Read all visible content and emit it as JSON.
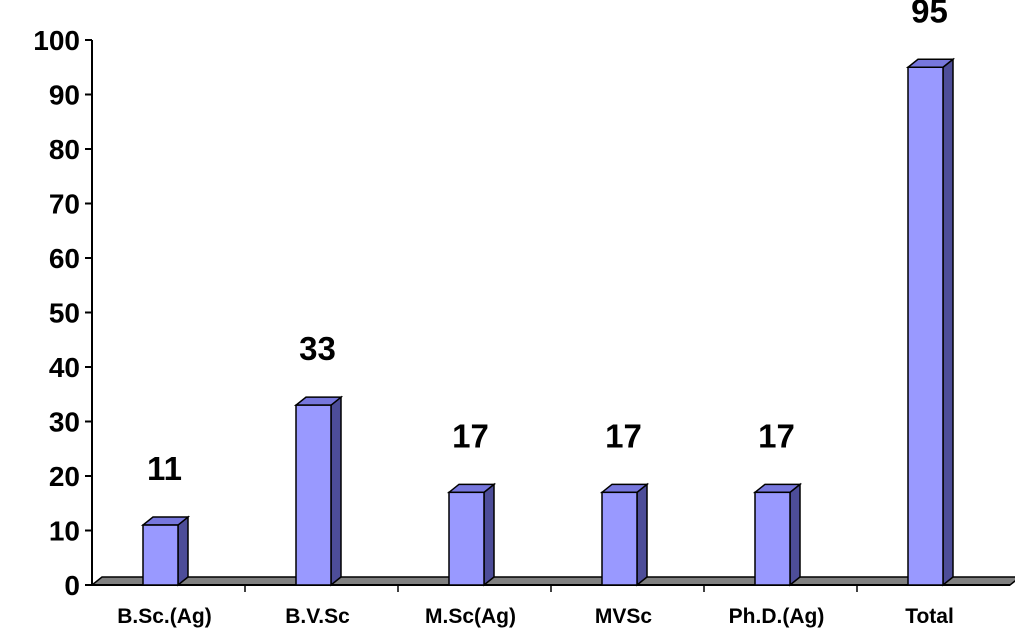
{
  "chart_data": {
    "type": "bar",
    "categories": [
      "B.Sc.(Ag)",
      "B.V.Sc",
      "M.Sc(Ag)",
      "MVSc",
      "Ph.D.(Ag)",
      "Total"
    ],
    "values": [
      11,
      33,
      17,
      17,
      17,
      95
    ],
    "data_labels": [
      "11",
      "33",
      "17",
      "17",
      "17",
      "95"
    ],
    "y_ticks": [
      "0",
      "10",
      "20",
      "30",
      "40",
      "50",
      "60",
      "70",
      "80",
      "90",
      "100"
    ],
    "ylim": [
      0,
      100
    ],
    "title": "",
    "xlabel": "",
    "ylabel": "",
    "grid": false,
    "style": "3d-column",
    "colors": {
      "bar_front": "#9999ff",
      "bar_side": "#4d4d99",
      "bar_top": "#7777dd",
      "floor": "#808080"
    }
  }
}
